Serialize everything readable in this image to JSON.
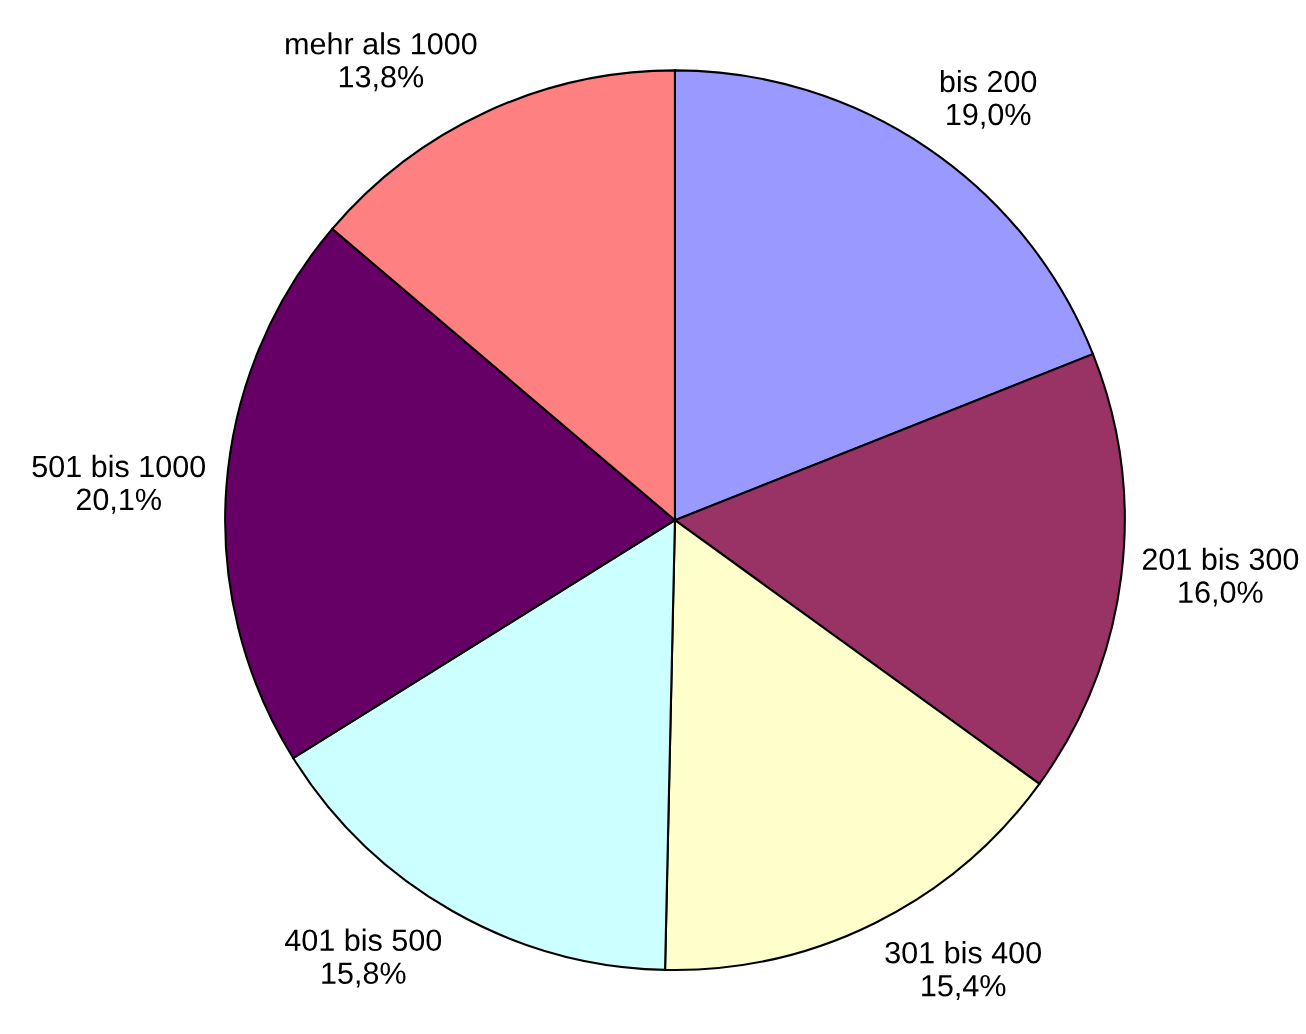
{
  "chart_data": {
    "type": "pie",
    "categories": [
      "bis 200",
      "201 bis 300",
      "301 bis 400",
      "401 bis 500",
      "501 bis 1000",
      "mehr als 1000"
    ],
    "values": [
      19.0,
      16.0,
      15.4,
      15.8,
      20.1,
      13.8
    ],
    "colors": [
      "#9999ff",
      "#993366",
      "#ffffcc",
      "#ccffff",
      "#660066",
      "#ff8080"
    ],
    "value_labels": [
      "19,0%",
      "16,0%",
      "15,4%",
      "15,8%",
      "20,1%",
      "13,8%"
    ]
  }
}
